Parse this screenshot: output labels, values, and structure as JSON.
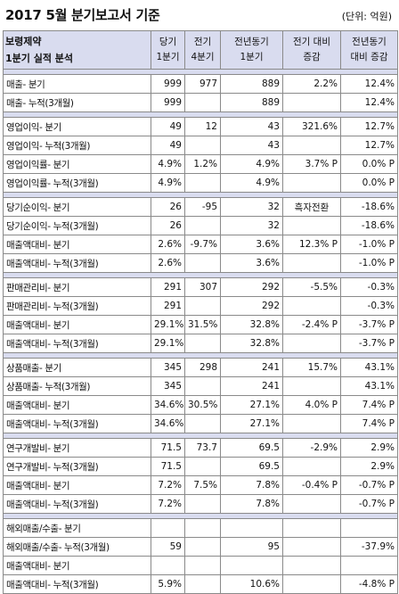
{
  "title": "2017 5월 분기보고서 기준",
  "unit": "(단위: 억원)",
  "header": {
    "company": "보령제약",
    "subtitle": "1분기 실적 분석",
    "cols": [
      "당기\n1분기",
      "전기\n4분기",
      "전년동기\n1분기",
      "전기 대비\n증감",
      "전년동기\n대비 증감"
    ]
  },
  "groups": [
    {
      "rows": [
        [
          "매출- 분기",
          "999",
          "977",
          "889",
          "2.2%",
          "12.4%"
        ],
        [
          "매출- 누적(3개월)",
          "999",
          "",
          "889",
          "",
          "12.4%"
        ]
      ]
    },
    {
      "rows": [
        [
          "영업이익- 분기",
          "49",
          "12",
          "43",
          "321.6%",
          "12.7%"
        ],
        [
          "영업이익- 누적(3개월)",
          "49",
          "",
          "43",
          "",
          "12.7%"
        ],
        [
          "영업이익률- 분기",
          "4.9%",
          "1.2%",
          "4.9%",
          "3.7% P",
          "0.0% P"
        ],
        [
          "영업이익률- 누적(3개월)",
          "4.9%",
          "",
          "4.9%",
          "",
          "0.0% P"
        ]
      ]
    },
    {
      "rows": [
        [
          "당기순이익- 분기",
          "26",
          "-95",
          "32",
          "흑자전환",
          "-18.6%"
        ],
        [
          "당기순이익- 누적(3개월)",
          "26",
          "",
          "32",
          "",
          "-18.6%"
        ],
        [
          "매출액대비- 분기",
          "2.6%",
          "-9.7%",
          "3.6%",
          "12.3% P",
          "-1.0% P"
        ],
        [
          "매출액대비- 누적(3개월)",
          "2.6%",
          "",
          "3.6%",
          "",
          "-1.0% P"
        ]
      ]
    },
    {
      "rows": [
        [
          "판매관리비- 분기",
          "291",
          "307",
          "292",
          "-5.5%",
          "-0.3%"
        ],
        [
          "판매관리비- 누적(3개월)",
          "291",
          "",
          "292",
          "",
          "-0.3%"
        ],
        [
          "매출액대비- 분기",
          "29.1%",
          "31.5%",
          "32.8%",
          "-2.4% P",
          "-3.7% P"
        ],
        [
          "매출액대비- 누적(3개월)",
          "29.1%",
          "",
          "32.8%",
          "",
          "-3.7% P"
        ]
      ]
    },
    {
      "rows": [
        [
          "상품매출- 분기",
          "345",
          "298",
          "241",
          "15.7%",
          "43.1%"
        ],
        [
          "상품매출- 누적(3개월)",
          "345",
          "",
          "241",
          "",
          "43.1%"
        ],
        [
          "매출액대비- 분기",
          "34.6%",
          "30.5%",
          "27.1%",
          "4.0% P",
          "7.4% P"
        ],
        [
          "매출액대비- 누적(3개월)",
          "34.6%",
          "",
          "27.1%",
          "",
          "7.4% P"
        ]
      ]
    },
    {
      "rows": [
        [
          "연구개발비- 분기",
          "71.5",
          "73.7",
          "69.5",
          "-2.9%",
          "2.9%"
        ],
        [
          "연구개발비- 누적(3개월)",
          "71.5",
          "",
          "69.5",
          "",
          "2.9%"
        ],
        [
          "매출액대비- 분기",
          "7.2%",
          "7.5%",
          "7.8%",
          "-0.4% P",
          "-0.7% P"
        ],
        [
          "매출액대비- 누적(3개월)",
          "7.2%",
          "",
          "7.8%",
          "",
          "-0.7% P"
        ]
      ]
    },
    {
      "rows": [
        [
          "해외매출/수출- 분기",
          "",
          "",
          "",
          "",
          ""
        ],
        [
          "해외매출/수출- 누적(3개월)",
          "59",
          "",
          "95",
          "",
          "-37.9%"
        ],
        [
          "매출액대비- 분기",
          "",
          "",
          "",
          "",
          ""
        ],
        [
          "매출액대비- 누적(3개월)",
          "5.9%",
          "",
          "10.6%",
          "",
          "-4.8% P"
        ]
      ]
    }
  ]
}
